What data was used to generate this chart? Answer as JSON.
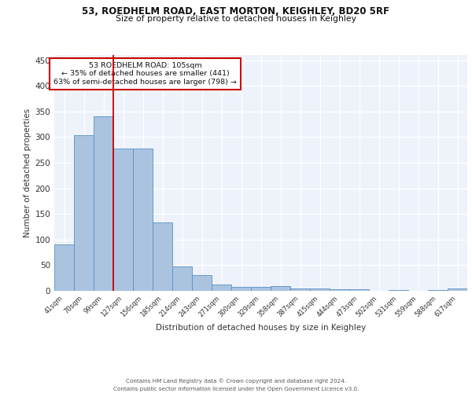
{
  "title_line1": "53, ROEDHELM ROAD, EAST MORTON, KEIGHLEY, BD20 5RF",
  "title_line2": "Size of property relative to detached houses in Keighley",
  "xlabel": "Distribution of detached houses by size in Keighley",
  "ylabel": "Number of detached properties",
  "bar_labels": [
    "41sqm",
    "70sqm",
    "99sqm",
    "127sqm",
    "156sqm",
    "185sqm",
    "214sqm",
    "243sqm",
    "271sqm",
    "300sqm",
    "329sqm",
    "358sqm",
    "387sqm",
    "415sqm",
    "444sqm",
    "473sqm",
    "502sqm",
    "531sqm",
    "559sqm",
    "588sqm",
    "617sqm"
  ],
  "bar_values": [
    91,
    303,
    341,
    278,
    278,
    134,
    47,
    31,
    12,
    8,
    8,
    9,
    4,
    4,
    3,
    3,
    0,
    2,
    0,
    2,
    4
  ],
  "bar_color": "#aac4e0",
  "bar_edge_color": "#5a8fc0",
  "background_color": "#eef3fb",
  "grid_color": "#ffffff",
  "vline_x": 2.5,
  "vline_color": "#cc0000",
  "annotation_text": "53 ROEDHELM ROAD: 105sqm\n← 35% of detached houses are smaller (441)\n63% of semi-detached houses are larger (798) →",
  "annotation_box_color": "#ffffff",
  "annotation_box_edge": "#cc0000",
  "footer_text": "Contains HM Land Registry data © Crown copyright and database right 2024.\nContains public sector information licensed under the Open Government Licence v3.0.",
  "ylim": [
    0,
    460
  ],
  "yticks": [
    0,
    50,
    100,
    150,
    200,
    250,
    300,
    350,
    400,
    450
  ]
}
